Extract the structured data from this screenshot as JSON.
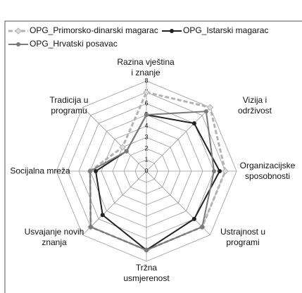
{
  "chart_data": {
    "type": "radar",
    "categories": [
      "Razina vještina\ni znanje",
      "Vizija i održivost",
      "Organizacijske\nsposobnosti",
      "Ustrajnost u\nprogrami",
      "Tržna\nusmjerenost",
      "Usvajanje novih\nznanja",
      "Socijalna mreža",
      "Tradicija u\nprogramu"
    ],
    "series": [
      {
        "name": "OPG_Primorsko-dinarski magarac",
        "color": "#b3b3b3",
        "values": [
          7,
          8,
          7,
          7,
          7,
          7,
          5,
          3
        ]
      },
      {
        "name": "OPG_Istarski magarac",
        "color": "#222222",
        "values": [
          5,
          6,
          6.5,
          6,
          7,
          5.5,
          4.5,
          2.5
        ]
      },
      {
        "name": "OPG_Hrvatski posavac",
        "color": "#7a7a7a",
        "values": [
          5,
          7.5,
          6,
          7,
          7,
          7,
          5,
          2.5
        ]
      }
    ],
    "ylim": [
      0,
      8
    ],
    "yticks": [
      0,
      1,
      2,
      3,
      4,
      5,
      6,
      7,
      8
    ],
    "grid": true
  }
}
